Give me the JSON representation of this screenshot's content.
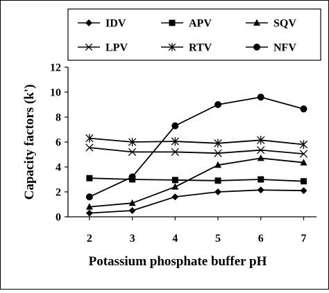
{
  "chart_data": {
    "type": "line",
    "title": "",
    "xlabel": "Potassium phosphate buffer pH",
    "ylabel": "Capacity factors (k')",
    "x": [
      2,
      3,
      4,
      5,
      6,
      7
    ],
    "xlim": [
      1.5,
      7.3
    ],
    "ylim": [
      0,
      12
    ],
    "yticks": [
      0,
      2,
      4,
      6,
      8,
      10,
      12
    ],
    "grid": false,
    "legend_position": "top",
    "series": [
      {
        "name": "IDV",
        "marker": "diamond",
        "values": [
          0.3,
          0.5,
          1.6,
          2.0,
          2.15,
          2.1
        ]
      },
      {
        "name": "APV",
        "marker": "square",
        "values": [
          3.1,
          3.0,
          2.95,
          2.9,
          3.0,
          2.85
        ]
      },
      {
        "name": "SQV",
        "marker": "triangle",
        "values": [
          0.8,
          1.1,
          2.4,
          4.15,
          4.7,
          4.35
        ]
      },
      {
        "name": "LPV",
        "marker": "x",
        "values": [
          5.55,
          5.2,
          5.2,
          5.1,
          5.35,
          5.05
        ]
      },
      {
        "name": "RTV",
        "marker": "asterisk",
        "values": [
          6.3,
          6.0,
          6.05,
          5.9,
          6.15,
          5.8
        ]
      },
      {
        "name": "NFV",
        "marker": "circle",
        "values": [
          1.6,
          3.2,
          7.3,
          9.0,
          9.6,
          8.65
        ]
      }
    ],
    "colors": {
      "line": "#000000",
      "background": "#ffffff"
    }
  }
}
